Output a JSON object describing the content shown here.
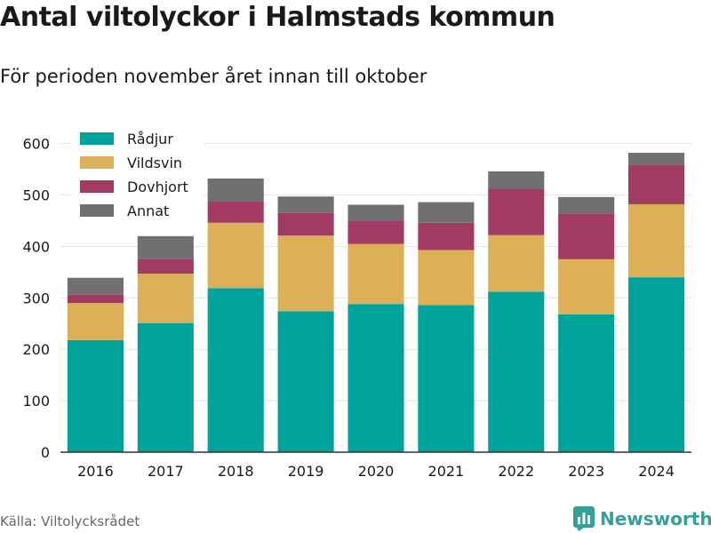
{
  "title": "Antal viltolyckor i Halmstads kommun",
  "subtitle": "För perioden november året innan till oktober",
  "source": "Källa: Viltolycksrådet",
  "brand": {
    "name": "Newsworthy",
    "logo_icon": "newsworthy-logo-icon",
    "color": "#35a09a"
  },
  "chart_data": {
    "type": "bar",
    "stacked": true,
    "categories": [
      "2016",
      "2017",
      "2018",
      "2019",
      "2020",
      "2021",
      "2022",
      "2023",
      "2024"
    ],
    "series": [
      {
        "name": "Rådjur",
        "color": "#00a29a",
        "values": [
          218,
          251,
          319,
          274,
          288,
          286,
          312,
          268,
          340
        ]
      },
      {
        "name": "Vildsvin",
        "color": "#dbb056",
        "values": [
          72,
          96,
          127,
          147,
          117,
          107,
          110,
          107,
          142
        ]
      },
      {
        "name": "Dovhjort",
        "color": "#a13b64",
        "values": [
          16,
          29,
          42,
          44,
          45,
          53,
          90,
          89,
          77
        ]
      },
      {
        "name": "Annat",
        "color": "#707070",
        "values": [
          33,
          44,
          44,
          32,
          31,
          40,
          34,
          32,
          23
        ]
      }
    ],
    "yticks": [
      0,
      100,
      200,
      300,
      400,
      500,
      600
    ],
    "ylim": [
      0,
      620
    ],
    "grid": true,
    "legend": "top-left"
  }
}
